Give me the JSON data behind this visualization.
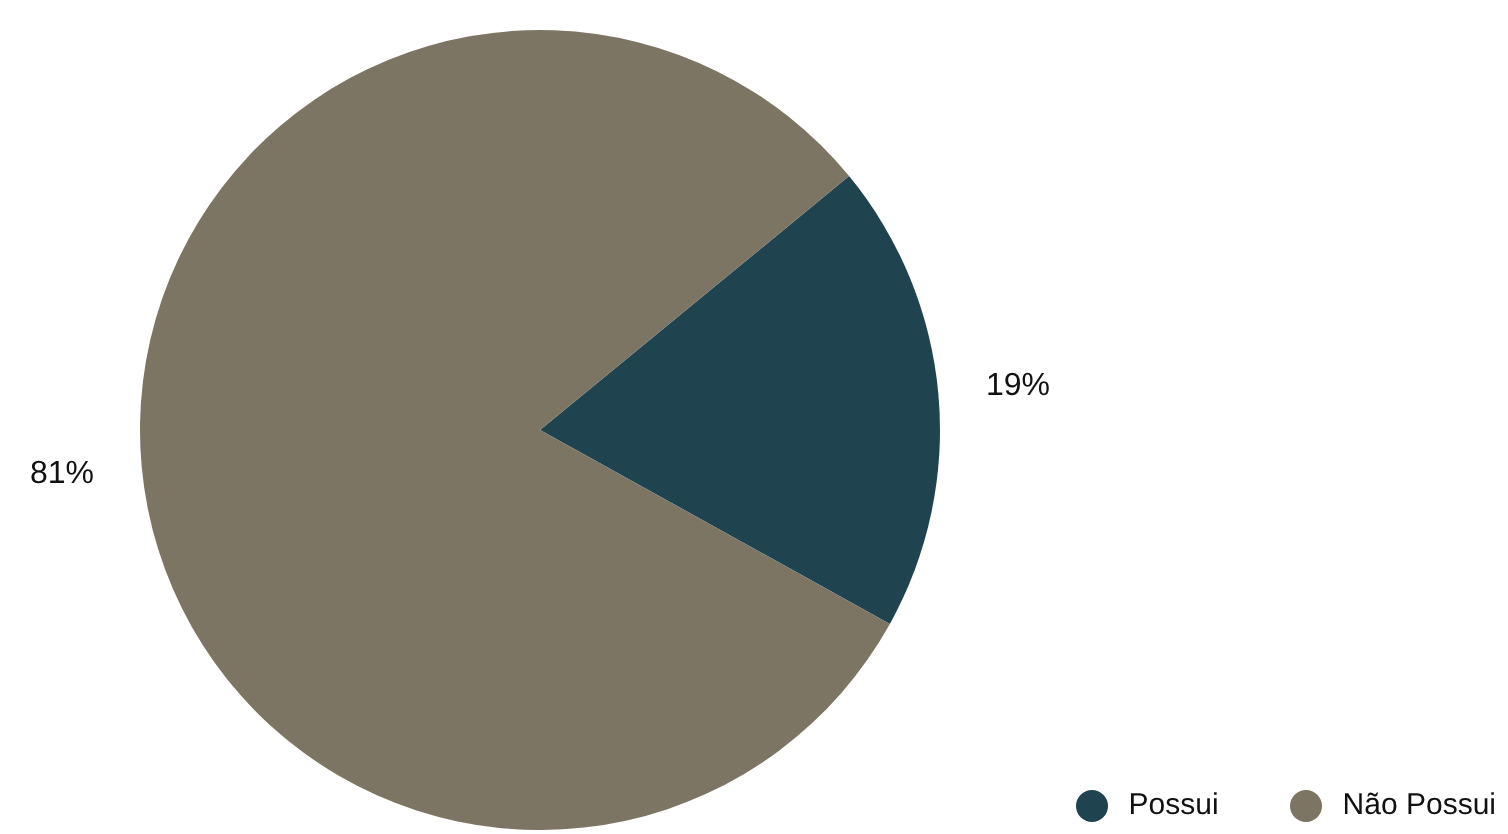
{
  "chart_data": {
    "type": "pie",
    "categories": [
      "Possui",
      "Não Possui"
    ],
    "values": [
      19,
      81
    ],
    "colors": [
      "#1f4450",
      "#7d7563"
    ],
    "value_labels": [
      "19%",
      "81%"
    ],
    "legend": "bottom right"
  }
}
